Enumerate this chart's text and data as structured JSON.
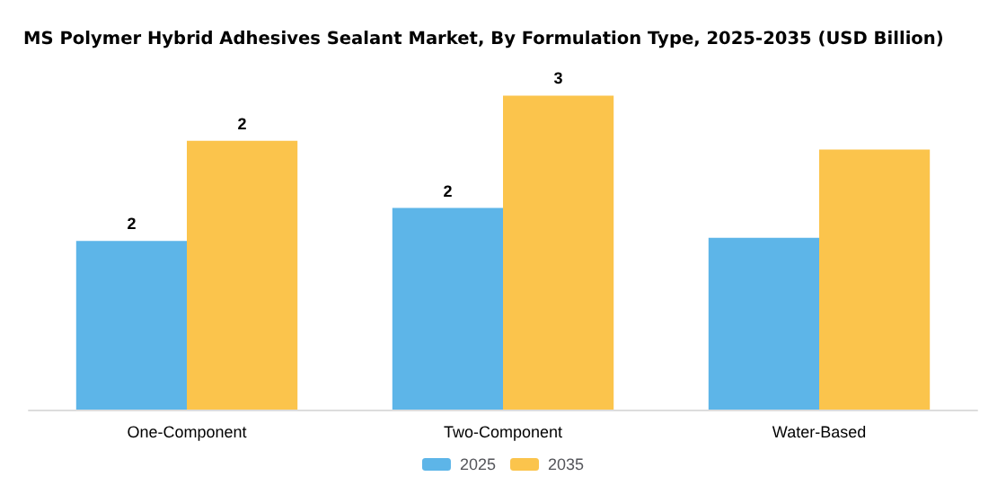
{
  "chart_data": {
    "type": "bar",
    "title": "MS Polymer Hybrid Adhesives Sealant Market, By Formulation Type, 2025-2035 (USD Billion)",
    "categories": [
      "One-Component",
      "Two-Component",
      "Water-Based"
    ],
    "legend": "bottom",
    "series": [
      {
        "name": "2025",
        "color": "#5db5e8",
        "values": [
          1.53,
          1.83,
          1.56
        ],
        "value_labels": [
          "2",
          "2",
          null
        ]
      },
      {
        "name": "2035",
        "color": "#fbc44c",
        "values": [
          2.44,
          2.85,
          2.36
        ],
        "value_labels": [
          "2",
          "3",
          null
        ]
      }
    ]
  }
}
